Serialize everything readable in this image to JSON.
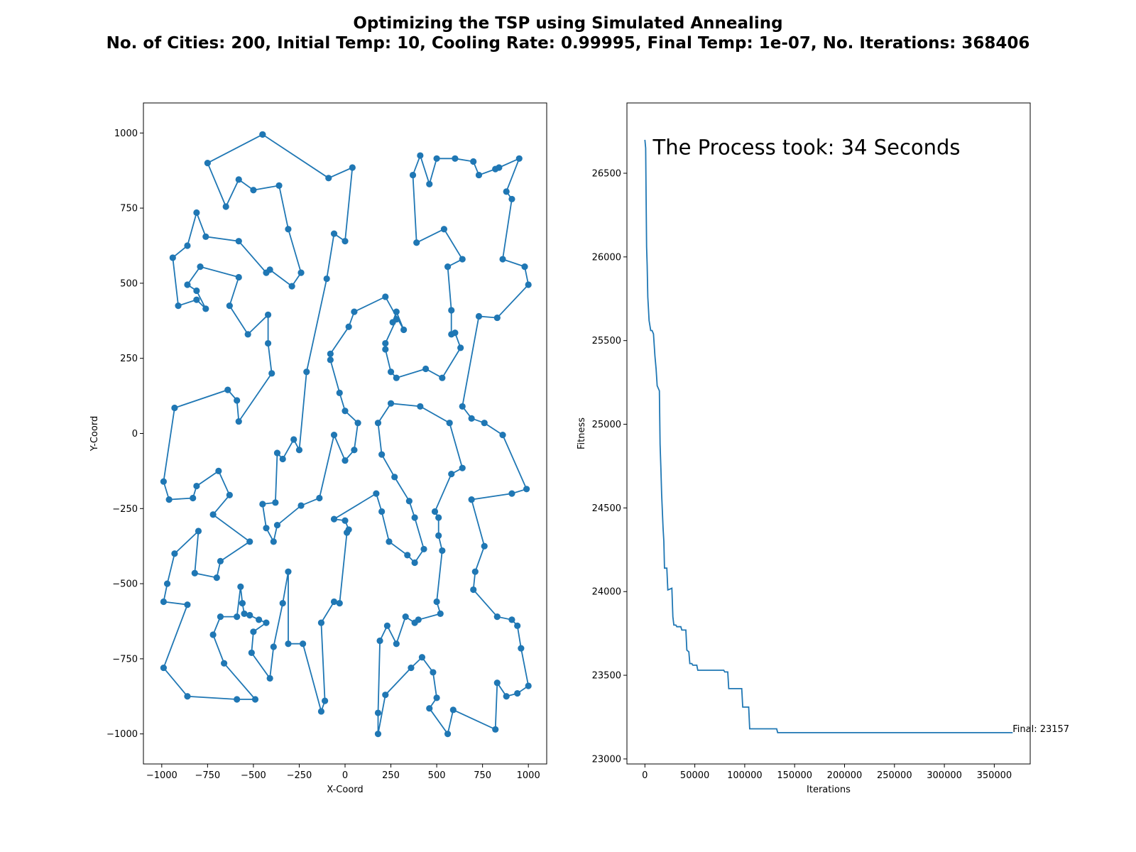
{
  "titles": {
    "line1": "Optimizing the TSP using Simulated Annealing",
    "line2": "No. of Cities: 200, Initial Temp: 10, Cooling Rate: 0.99995, Final Temp: 1e-07, No. Iterations: 368406"
  },
  "colors": {
    "line": "#1f77b4",
    "axes": "#000000",
    "background": "#ffffff"
  },
  "chart_data": [
    {
      "type": "line",
      "name": "tour",
      "xlabel": "X-Coord",
      "ylabel": "Y-Coord",
      "xlim": [
        -1100,
        1100
      ],
      "ylim": [
        -1100,
        1100
      ],
      "xticks": [
        -1000,
        -750,
        -500,
        -250,
        0,
        250,
        500,
        750,
        1000
      ],
      "yticks": [
        -1000,
        -750,
        -500,
        -250,
        0,
        250,
        500,
        750,
        1000
      ],
      "xtick_labels": [
        "−1000",
        "−750",
        "−500",
        "−250",
        "0",
        "250",
        "500",
        "750",
        "1000"
      ],
      "ytick_labels": [
        "−1000",
        "−750",
        "−500",
        "−250",
        "0",
        "250",
        "500",
        "750",
        "1000"
      ],
      "markers": true,
      "points": [
        [
          -450,
          995
        ],
        [
          -750,
          900
        ],
        [
          -650,
          755
        ],
        [
          -580,
          845
        ],
        [
          -500,
          810
        ],
        [
          -360,
          825
        ],
        [
          -310,
          680
        ],
        [
          -240,
          535
        ],
        [
          -290,
          490
        ],
        [
          -410,
          545
        ],
        [
          -430,
          535
        ],
        [
          -580,
          640
        ],
        [
          -760,
          655
        ],
        [
          -810,
          735
        ],
        [
          -860,
          625
        ],
        [
          -940,
          585
        ],
        [
          -910,
          425
        ],
        [
          -810,
          445
        ],
        [
          -760,
          415
        ],
        [
          -810,
          475
        ],
        [
          -860,
          495
        ],
        [
          -790,
          555
        ],
        [
          -580,
          520
        ],
        [
          -630,
          425
        ],
        [
          -530,
          330
        ],
        [
          -420,
          395
        ],
        [
          -420,
          300
        ],
        [
          -400,
          200
        ],
        [
          -580,
          40
        ],
        [
          -590,
          110
        ],
        [
          -640,
          145
        ],
        [
          -930,
          85
        ],
        [
          -990,
          -160
        ],
        [
          -960,
          -220
        ],
        [
          -830,
          -215
        ],
        [
          -810,
          -175
        ],
        [
          -690,
          -125
        ],
        [
          -630,
          -205
        ],
        [
          -720,
          -270
        ],
        [
          -520,
          -360
        ],
        [
          -680,
          -425
        ],
        [
          -700,
          -480
        ],
        [
          -820,
          -465
        ],
        [
          -800,
          -325
        ],
        [
          -930,
          -400
        ],
        [
          -970,
          -500
        ],
        [
          -990,
          -560
        ],
        [
          -860,
          -570
        ],
        [
          -990,
          -780
        ],
        [
          -860,
          -875
        ],
        [
          -590,
          -885
        ],
        [
          -490,
          -885
        ],
        [
          -660,
          -765
        ],
        [
          -720,
          -670
        ],
        [
          -680,
          -610
        ],
        [
          -590,
          -610
        ],
        [
          -570,
          -510
        ],
        [
          -560,
          -565
        ],
        [
          -550,
          -600
        ],
        [
          -520,
          -605
        ],
        [
          -470,
          -620
        ],
        [
          -430,
          -630
        ],
        [
          -500,
          -660
        ],
        [
          -510,
          -730
        ],
        [
          -410,
          -815
        ],
        [
          -390,
          -710
        ],
        [
          -340,
          -565
        ],
        [
          -310,
          -460
        ],
        [
          -310,
          -700
        ],
        [
          -230,
          -700
        ],
        [
          -130,
          -925
        ],
        [
          -110,
          -890
        ],
        [
          -130,
          -630
        ],
        [
          -60,
          -560
        ],
        [
          -30,
          -565
        ],
        [
          10,
          -330
        ],
        [
          20,
          -320
        ],
        [
          0,
          -290
        ],
        [
          -60,
          -285
        ],
        [
          170,
          -200
        ],
        [
          200,
          -260
        ],
        [
          240,
          -360
        ],
        [
          340,
          -405
        ],
        [
          380,
          -430
        ],
        [
          430,
          -385
        ],
        [
          380,
          -280
        ],
        [
          350,
          -225
        ],
        [
          270,
          -145
        ],
        [
          200,
          -70
        ],
        [
          180,
          35
        ],
        [
          250,
          100
        ],
        [
          410,
          90
        ],
        [
          570,
          35
        ],
        [
          640,
          -115
        ],
        [
          580,
          -135
        ],
        [
          490,
          -260
        ],
        [
          510,
          -280
        ],
        [
          510,
          -340
        ],
        [
          530,
          -390
        ],
        [
          500,
          -560
        ],
        [
          520,
          -600
        ],
        [
          400,
          -620
        ],
        [
          380,
          -630
        ],
        [
          330,
          -610
        ],
        [
          280,
          -700
        ],
        [
          230,
          -640
        ],
        [
          190,
          -690
        ],
        [
          180,
          -930
        ],
        [
          180,
          -1000
        ],
        [
          220,
          -870
        ],
        [
          360,
          -780
        ],
        [
          420,
          -745
        ],
        [
          480,
          -795
        ],
        [
          500,
          -880
        ],
        [
          460,
          -915
        ],
        [
          560,
          -1000
        ],
        [
          590,
          -920
        ],
        [
          820,
          -985
        ],
        [
          830,
          -830
        ],
        [
          880,
          -875
        ],
        [
          940,
          -865
        ],
        [
          1000,
          -840
        ],
        [
          960,
          -715
        ],
        [
          940,
          -640
        ],
        [
          910,
          -620
        ],
        [
          830,
          -610
        ],
        [
          700,
          -520
        ],
        [
          710,
          -460
        ],
        [
          760,
          -375
        ],
        [
          690,
          -220
        ],
        [
          910,
          -200
        ],
        [
          990,
          -185
        ],
        [
          860,
          -5
        ],
        [
          760,
          35
        ],
        [
          690,
          50
        ],
        [
          640,
          90
        ],
        [
          730,
          390
        ],
        [
          830,
          385
        ],
        [
          1000,
          495
        ],
        [
          980,
          555
        ],
        [
          860,
          580
        ],
        [
          910,
          780
        ],
        [
          880,
          805
        ],
        [
          950,
          915
        ],
        [
          840,
          885
        ],
        [
          820,
          880
        ],
        [
          730,
          860
        ],
        [
          700,
          905
        ],
        [
          600,
          915
        ],
        [
          500,
          915
        ],
        [
          460,
          830
        ],
        [
          410,
          925
        ],
        [
          370,
          860
        ],
        [
          390,
          635
        ],
        [
          540,
          680
        ],
        [
          640,
          580
        ],
        [
          560,
          555
        ],
        [
          580,
          410
        ],
        [
          580,
          330
        ],
        [
          600,
          335
        ],
        [
          630,
          285
        ],
        [
          530,
          185
        ],
        [
          440,
          215
        ],
        [
          280,
          185
        ],
        [
          250,
          205
        ],
        [
          220,
          280
        ],
        [
          220,
          300
        ],
        [
          280,
          380
        ],
        [
          260,
          370
        ],
        [
          280,
          405
        ],
        [
          320,
          345
        ],
        [
          220,
          455
        ],
        [
          50,
          405
        ],
        [
          20,
          355
        ],
        [
          -80,
          265
        ],
        [
          -80,
          245
        ],
        [
          -30,
          135
        ],
        [
          0,
          75
        ],
        [
          70,
          35
        ],
        [
          50,
          -55
        ],
        [
          0,
          -90
        ],
        [
          -60,
          -5
        ],
        [
          -140,
          -215
        ],
        [
          -240,
          -240
        ],
        [
          -370,
          -305
        ],
        [
          -390,
          -360
        ],
        [
          -430,
          -315
        ],
        [
          -450,
          -235
        ],
        [
          -380,
          -230
        ],
        [
          -370,
          -65
        ],
        [
          -340,
          -85
        ],
        [
          -280,
          -20
        ],
        [
          -250,
          -55
        ],
        [
          -210,
          205
        ],
        [
          -100,
          515
        ],
        [
          -60,
          665
        ],
        [
          0,
          640
        ],
        [
          40,
          885
        ],
        [
          -90,
          850
        ],
        [
          -450,
          995
        ]
      ]
    },
    {
      "type": "line",
      "name": "fitness",
      "xlabel": "Iterations",
      "ylabel": "Fitness",
      "xlim": [
        -18000,
        386000
      ],
      "ylim": [
        22970,
        26920
      ],
      "xticks": [
        0,
        50000,
        100000,
        150000,
        200000,
        250000,
        300000,
        350000
      ],
      "yticks": [
        23000,
        23500,
        24000,
        24500,
        25000,
        25500,
        26000,
        26500
      ],
      "xtick_labels": [
        "0",
        "50000",
        "100000",
        "150000",
        "200000",
        "250000",
        "300000",
        "350000"
      ],
      "ytick_labels": [
        "23000",
        "23500",
        "24000",
        "24500",
        "25000",
        "25500",
        "26000",
        "26500"
      ],
      "step": true,
      "points": [
        [
          0,
          26700
        ],
        [
          800,
          26650
        ],
        [
          1200,
          26360
        ],
        [
          1700,
          26060
        ],
        [
          2300,
          25950
        ],
        [
          2900,
          25760
        ],
        [
          3500,
          25700
        ],
        [
          4200,
          25620
        ],
        [
          5800,
          25560
        ],
        [
          7200,
          25560
        ],
        [
          8600,
          25540
        ],
        [
          10000,
          25410
        ],
        [
          11200,
          25330
        ],
        [
          12300,
          25230
        ],
        [
          14500,
          25200
        ],
        [
          15200,
          24880
        ],
        [
          16000,
          24740
        ],
        [
          16800,
          24580
        ],
        [
          17500,
          24480
        ],
        [
          18200,
          24380
        ],
        [
          19000,
          24300
        ],
        [
          19600,
          24140
        ],
        [
          22000,
          24140
        ],
        [
          23000,
          24010
        ],
        [
          27000,
          24020
        ],
        [
          28000,
          23850
        ],
        [
          29000,
          23800
        ],
        [
          31000,
          23800
        ],
        [
          32000,
          23790
        ],
        [
          36000,
          23790
        ],
        [
          37000,
          23770
        ],
        [
          41000,
          23770
        ],
        [
          42000,
          23650
        ],
        [
          44000,
          23640
        ],
        [
          45000,
          23570
        ],
        [
          47000,
          23570
        ],
        [
          48000,
          23560
        ],
        [
          52000,
          23560
        ],
        [
          53000,
          23530
        ],
        [
          79000,
          23530
        ],
        [
          80000,
          23520
        ],
        [
          83000,
          23520
        ],
        [
          84000,
          23420
        ],
        [
          97000,
          23420
        ],
        [
          98000,
          23310
        ],
        [
          104000,
          23310
        ],
        [
          105000,
          23180
        ],
        [
          132000,
          23180
        ],
        [
          133000,
          23157
        ],
        [
          368406,
          23157
        ]
      ],
      "annotations": [
        {
          "text": "The Process took: 34 Seconds",
          "x": 8000,
          "y": 26650
        },
        {
          "text": "Final: 23157",
          "x": 368406,
          "y": 23157
        }
      ]
    }
  ]
}
